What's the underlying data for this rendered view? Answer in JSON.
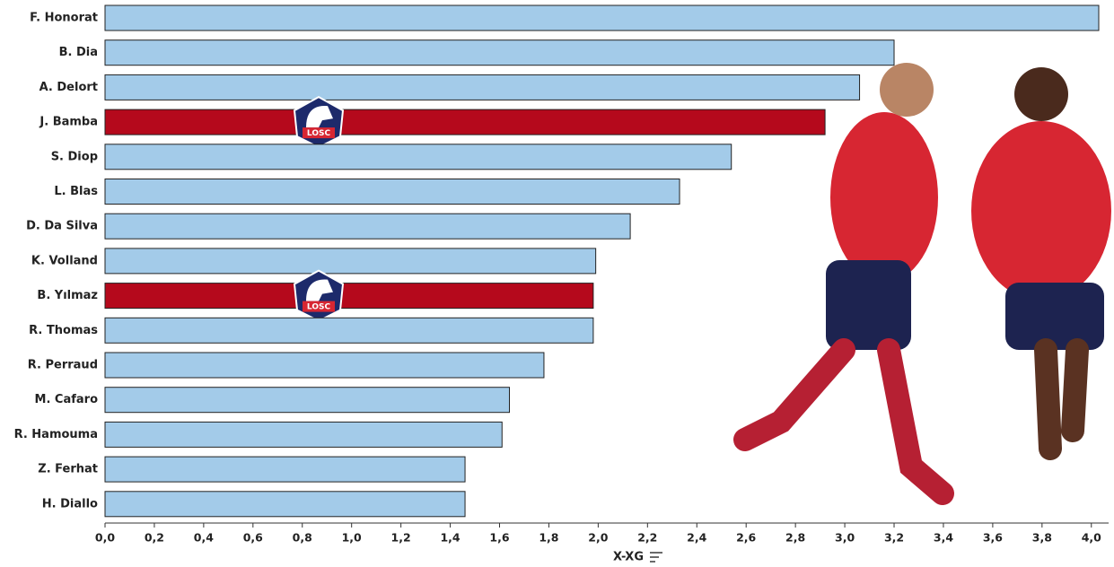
{
  "chart_data": {
    "type": "hbar",
    "x_label": "X-XG",
    "categories": [
      "F. Honorat",
      "B. Dia",
      "A. Delort",
      "J. Bamba",
      "S. Diop",
      "L. Blas",
      "D. Da Silva",
      "K. Volland",
      "B. Yılmaz",
      "R. Thomas",
      "R. Perraud",
      "M. Cafaro",
      "R. Hamouma",
      "Z. Ferhat",
      "H. Diallo"
    ],
    "values": [
      4.03,
      3.2,
      3.06,
      2.92,
      2.54,
      2.33,
      2.13,
      1.99,
      1.98,
      1.98,
      1.78,
      1.64,
      1.61,
      1.46,
      1.46
    ],
    "colors": [
      "#a3cbe9",
      "#a3cbe9",
      "#a3cbe9",
      "#b5091c",
      "#a3cbe9",
      "#a3cbe9",
      "#a3cbe9",
      "#a3cbe9",
      "#b5091c",
      "#a3cbe9",
      "#a3cbe9",
      "#a3cbe9",
      "#a3cbe9",
      "#a3cbe9",
      "#a3cbe9"
    ],
    "highlight_color": "#b5091c",
    "badge": "LOSC",
    "xlim": [
      0,
      4.07
    ],
    "xticks": [
      {
        "value": 0,
        "label": "0,0"
      },
      {
        "value": 0.2,
        "label": "0,2"
      },
      {
        "value": 0.4,
        "label": "0,4"
      },
      {
        "value": 0.6,
        "label": "0,6"
      },
      {
        "value": 0.8,
        "label": "0,8"
      },
      {
        "value": 1.0,
        "label": "1,0"
      },
      {
        "value": 1.2,
        "label": "1,2"
      },
      {
        "value": 1.4,
        "label": "1,4"
      },
      {
        "value": 1.6,
        "label": "1,6"
      },
      {
        "value": 1.8,
        "label": "1,8"
      },
      {
        "value": 2.0,
        "label": "2,0"
      },
      {
        "value": 2.2,
        "label": "2,2"
      },
      {
        "value": 2.4,
        "label": "2,4"
      },
      {
        "value": 2.6,
        "label": "2,6"
      },
      {
        "value": 2.8,
        "label": "2,8"
      },
      {
        "value": 3.0,
        "label": "3,0"
      },
      {
        "value": 3.2,
        "label": "3,2"
      },
      {
        "value": 3.4,
        "label": "3,4"
      },
      {
        "value": 3.6,
        "label": "3,6"
      },
      {
        "value": 3.8,
        "label": "3,8"
      },
      {
        "value": 4.0,
        "label": "4,0"
      }
    ]
  }
}
